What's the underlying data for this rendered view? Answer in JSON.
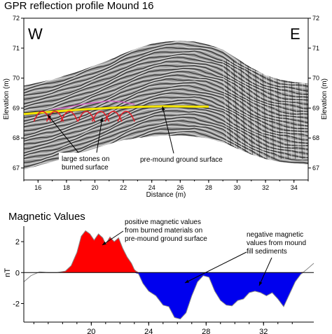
{
  "chart_data": [
    {
      "type": "scatter",
      "title": "GPR reflection profile Mound 16",
      "xlabel": "Distance (m)",
      "ylabel": "Elevation (m)",
      "xlim": [
        15,
        35
      ],
      "ylim": [
        66.6,
        72
      ],
      "x_ticks": [
        "16",
        "18",
        "20",
        "22",
        "24",
        "26",
        "28",
        "30",
        "32",
        "34"
      ],
      "y_ticks": [
        "67",
        "68",
        "69",
        "70",
        "71",
        "72"
      ],
      "corner_labels": {
        "left": "W",
        "right": "E"
      },
      "profile_top_surface": {
        "x": [
          15,
          17,
          19,
          21,
          22,
          23,
          24,
          25,
          26,
          27,
          28,
          29,
          30,
          31,
          32,
          33,
          34,
          35
        ],
        "y": [
          69.75,
          69.95,
          70.25,
          70.6,
          70.82,
          71.0,
          71.15,
          71.22,
          71.25,
          71.22,
          71.12,
          70.95,
          70.65,
          70.35,
          70.1,
          69.95,
          69.87,
          69.82
        ]
      },
      "profile_bottom_surface": {
        "x": [
          15,
          17,
          19,
          21,
          22,
          23,
          24,
          25,
          26,
          27,
          28,
          29,
          30,
          31,
          32,
          33,
          34,
          35
        ],
        "y": [
          66.95,
          67.2,
          67.5,
          67.8,
          67.93,
          68.0,
          68.05,
          68.08,
          68.08,
          68.05,
          67.98,
          67.85,
          67.65,
          67.45,
          67.3,
          67.2,
          67.15,
          67.12
        ]
      },
      "series": [
        {
          "name": "pre-mound ground surface",
          "x": [
            15,
            17,
            19,
            21,
            23,
            25,
            27,
            28
          ],
          "y": [
            68.8,
            68.88,
            68.95,
            69.0,
            69.04,
            69.06,
            69.05,
            69.05
          ]
        }
      ],
      "annotations": [
        {
          "text": "large stones on burned surface",
          "lines": [
            "large stones on",
            "burned surface"
          ]
        },
        {
          "text": "pre-mound ground surface"
        }
      ],
      "colors": {
        "ground_surface": "#f5e600",
        "stones": "#e0202a",
        "burned_trace": "#d060c0"
      }
    },
    {
      "type": "area",
      "title": "Magnetic Values",
      "xlabel": "",
      "ylabel": "nT",
      "xlim": [
        15.3,
        35.5
      ],
      "ylim": [
        -3.2,
        3.0
      ],
      "x_ticks": [
        "20",
        "24",
        "28",
        "32"
      ],
      "y_ticks": [
        "2",
        "0",
        "-2"
      ],
      "series": [
        {
          "x": [
            15.3,
            15.8,
            16.4,
            17.0,
            17.6,
            18.2,
            18.6,
            19.0,
            19.3,
            19.6,
            19.9,
            20.2,
            20.5,
            20.8,
            21.0,
            21.3,
            21.6,
            21.9,
            22.2,
            22.5,
            22.8,
            23.0,
            23.3,
            23.6,
            24.0,
            24.5,
            25.0,
            25.4,
            25.8,
            26.2,
            26.6,
            27.0,
            27.4,
            27.8,
            28.2,
            28.6,
            29.0,
            29.4,
            29.8,
            30.2,
            30.6,
            31.0,
            31.4,
            31.8,
            32.2,
            32.6,
            33.0,
            33.4,
            33.8,
            34.2,
            34.6,
            35.0,
            35.5
          ],
          "y": [
            -0.6,
            -0.2,
            0.05,
            0.0,
            0.0,
            0.1,
            0.45,
            1.3,
            2.35,
            2.7,
            2.5,
            2.1,
            2.5,
            2.25,
            1.85,
            2.3,
            2.0,
            2.25,
            1.55,
            1.0,
            0.6,
            0.2,
            -0.1,
            -0.7,
            -1.2,
            -1.5,
            -2.1,
            -2.2,
            -2.9,
            -3.0,
            -2.6,
            -1.5,
            -0.6,
            -0.2,
            -0.3,
            -1.2,
            -1.8,
            -2.1,
            -2.15,
            -1.8,
            -1.7,
            -1.3,
            -1.2,
            -1.3,
            -1.5,
            -1.3,
            -1.7,
            -2.2,
            -1.4,
            -0.6,
            -0.1,
            0.2,
            0.6
          ]
        }
      ],
      "colors": {
        "positive": "#ff0000",
        "negative": "#0000ee",
        "line": "#888888"
      },
      "annotations": [
        {
          "text": "positive magnetic values from burned materials on pre-mound ground surface",
          "lines": [
            "positive magnetic values",
            "from burned materials on",
            "pre-mound ground surface"
          ]
        },
        {
          "text": "negative magnetic values from mound fill sediments",
          "lines": [
            "negative magnetic",
            "values from mound",
            "fill sediments"
          ]
        }
      ]
    }
  ]
}
